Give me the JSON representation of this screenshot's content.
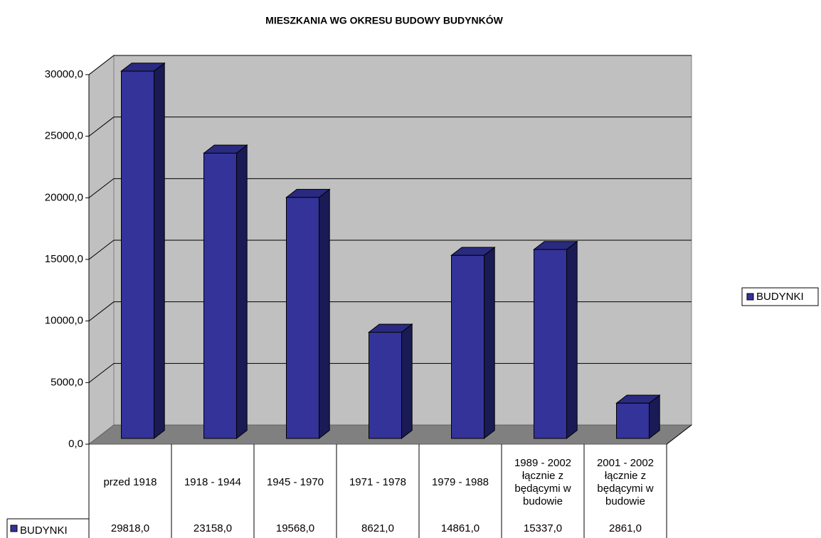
{
  "chart_data": {
    "type": "bar3d",
    "title": "MIESZKANIA WG OKRESU BUDOWY BUDYNKÓW",
    "categories": [
      "przed 1918",
      "1918 - 1944",
      "1945 - 1970",
      "1971 - 1978",
      "1979 - 1988",
      "1989 - 2002 łącznie z będącymi w budowie",
      "2001 - 2002 łącznie z będącymi w budowie"
    ],
    "series": [
      {
        "name": "BUDYNKI",
        "color": "#333399",
        "values": [
          29818,
          23158,
          19568,
          8621,
          14861,
          15337,
          2861
        ],
        "value_labels": [
          "29818,0",
          "23158,0",
          "19568,0",
          "8621,0",
          "14861,0",
          "15337,0",
          "2861,0"
        ]
      }
    ],
    "ylim": [
      0,
      30000
    ],
    "yticks": [
      {
        "value": 0,
        "label": "0,0"
      },
      {
        "value": 5000,
        "label": "5000,0"
      },
      {
        "value": 10000,
        "label": "10000,0"
      },
      {
        "value": 15000,
        "label": "15000,0"
      },
      {
        "value": 20000,
        "label": "20000,0"
      },
      {
        "value": 25000,
        "label": "25000,0"
      },
      {
        "value": 30000,
        "label": "30000,0"
      }
    ],
    "grid": true,
    "legend": "right",
    "data_table": true
  }
}
